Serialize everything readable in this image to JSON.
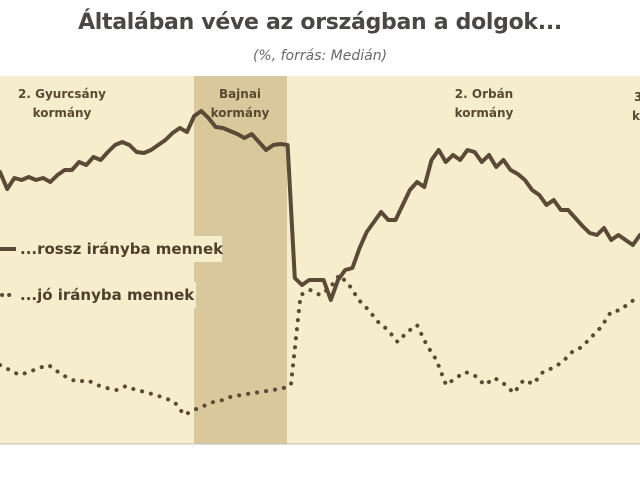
{
  "title": "Általában véve az országban a dolgok...",
  "subtitle": "(%, forrás: Medián)",
  "colors": {
    "background_band": "#f5edcc",
    "highlight_band": "#d9c89b",
    "line": "#5b4a36",
    "axis": "#bdbdbd"
  },
  "chart_data": {
    "type": "line",
    "periods": [
      {
        "label_lines": [
          "2. Gyurcsány",
          "kormány"
        ]
      },
      {
        "label_lines": [
          "Bajnai",
          "kormány"
        ]
      },
      {
        "label_lines": [
          "2. Orbán",
          "kormány"
        ]
      },
      {
        "label_lines": [
          "3.",
          "k"
        ]
      }
    ],
    "series": [
      {
        "name": "...rossz irányba mennek",
        "style": "solid",
        "values": [
          172,
          189,
          178,
          180,
          177,
          180,
          178,
          182,
          175,
          170,
          170,
          162,
          165,
          157,
          160,
          152,
          145,
          142,
          145,
          152,
          153,
          150,
          145,
          140,
          133,
          128,
          132,
          116,
          111,
          118,
          127,
          128,
          131,
          134,
          138,
          134,
          142,
          150,
          145,
          144,
          145,
          278,
          285,
          280,
          280,
          280,
          300,
          280,
          270,
          268,
          248,
          232,
          222,
          212,
          220,
          220,
          205,
          190,
          182,
          187,
          160,
          150,
          162,
          155,
          160,
          150,
          152,
          162,
          155,
          167,
          160,
          170,
          174,
          180,
          190,
          195,
          205,
          200,
          210,
          210,
          218,
          226,
          233,
          235,
          228,
          240,
          235,
          240,
          245,
          235
        ]
      },
      {
        "name": "...jó irányba mennek",
        "style": "dotted",
        "values": [
          365,
          370,
          375,
          372,
          368,
          365,
          372,
          378,
          382,
          380,
          385,
          388,
          390,
          386,
          390,
          392,
          395,
          398,
          402,
          415,
          410,
          406,
          402,
          400,
          396,
          395,
          393,
          392,
          390,
          389,
          385,
          295,
          290,
          295,
          288,
          275,
          285,
          300,
          310,
          322,
          330,
          342,
          332,
          325,
          345,
          360,
          385,
          378,
          372,
          376,
          385,
          378,
          384,
          393,
          380,
          384,
          372,
          368,
          362,
          352,
          347,
          337,
          327,
          312,
          310,
          302,
          297
        ]
      }
    ]
  }
}
